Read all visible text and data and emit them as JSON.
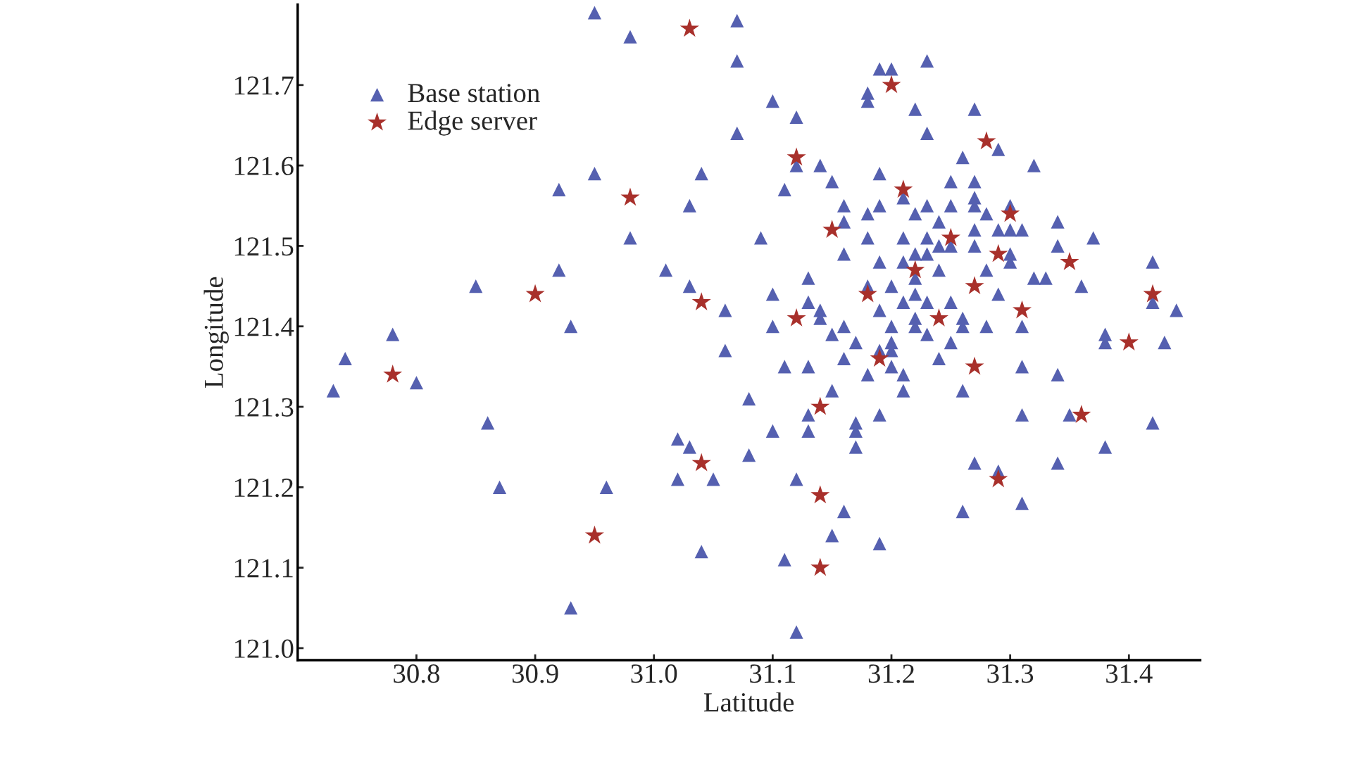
{
  "chart_data": {
    "type": "scatter",
    "xlabel": "Latitude",
    "ylabel": "Longitude",
    "xlim": [
      30.7,
      31.46
    ],
    "ylim": [
      120.985,
      121.8
    ],
    "xticks": [
      30.8,
      30.9,
      {
        "value": 31.0,
        "label": "31.0"
      },
      31.1,
      31.2,
      31.3,
      31.4
    ],
    "yticks": [
      {
        "value": 121.0,
        "label": "121.0"
      },
      121.1,
      121.2,
      121.3,
      121.4,
      121.5,
      121.6,
      121.7
    ],
    "legend": "top left",
    "series": [
      {
        "name": "Base station",
        "color": "#5560b0",
        "marker": "triangle",
        "x": [
          30.73,
          30.74,
          30.78,
          30.8,
          30.85,
          30.86,
          30.87,
          30.92,
          30.92,
          30.93,
          30.95,
          30.95,
          30.96,
          30.93,
          30.98,
          30.98,
          31.01,
          31.02,
          31.03,
          31.02,
          31.03,
          31.03,
          31.04,
          31.04,
          31.05,
          31.06,
          31.06,
          31.07,
          31.07,
          31.07,
          31.08,
          31.08,
          31.09,
          31.1,
          31.1,
          31.1,
          31.1,
          31.11,
          31.11,
          31.12,
          31.11,
          31.12,
          31.12,
          31.12,
          31.13,
          31.13,
          31.13,
          31.13,
          31.13,
          31.14,
          31.14,
          31.14,
          31.15,
          31.15,
          31.15,
          31.15,
          31.16,
          31.16,
          31.16,
          31.16,
          31.16,
          31.16,
          31.17,
          31.17,
          31.17,
          31.17,
          31.18,
          31.18,
          31.18,
          31.18,
          31.18,
          31.18,
          31.19,
          31.19,
          31.19,
          31.19,
          31.19,
          31.19,
          31.19,
          31.19,
          31.2,
          31.2,
          31.2,
          31.2,
          31.2,
          31.2,
          31.21,
          31.21,
          31.21,
          31.21,
          31.21,
          31.21,
          31.22,
          31.22,
          31.22,
          31.22,
          31.22,
          31.22,
          31.22,
          31.23,
          31.23,
          31.23,
          31.23,
          31.23,
          31.23,
          31.23,
          31.24,
          31.24,
          31.24,
          31.24,
          31.25,
          31.25,
          31.25,
          31.25,
          31.25,
          31.26,
          31.26,
          31.26,
          31.26,
          31.26,
          31.27,
          31.27,
          31.27,
          31.27,
          31.27,
          31.27,
          31.27,
          31.28,
          31.28,
          31.28,
          31.29,
          31.29,
          31.29,
          31.29,
          31.3,
          31.3,
          31.3,
          31.3,
          31.31,
          31.31,
          31.31,
          31.31,
          31.31,
          31.32,
          31.32,
          31.33,
          31.34,
          31.34,
          31.34,
          31.34,
          31.36,
          31.35,
          31.37,
          31.38,
          31.38,
          31.38,
          31.42,
          31.42,
          31.42,
          31.43,
          31.44
        ],
        "values": [
          121.32,
          121.36,
          121.39,
          121.33,
          121.45,
          121.28,
          121.2,
          121.47,
          121.57,
          121.4,
          121.59,
          121.79,
          121.2,
          121.05,
          121.76,
          121.51,
          121.47,
          121.26,
          121.25,
          121.21,
          121.45,
          121.55,
          121.59,
          121.12,
          121.21,
          121.42,
          121.37,
          121.73,
          121.78,
          121.64,
          121.31,
          121.24,
          121.51,
          121.68,
          121.4,
          121.44,
          121.27,
          121.35,
          121.11,
          121.66,
          121.57,
          121.6,
          121.21,
          121.02,
          121.43,
          121.35,
          121.27,
          121.29,
          121.46,
          121.41,
          121.6,
          121.42,
          121.32,
          121.39,
          121.58,
          121.14,
          121.53,
          121.55,
          121.49,
          121.36,
          121.17,
          121.4,
          121.27,
          121.25,
          121.38,
          121.28,
          121.51,
          121.69,
          121.45,
          121.54,
          121.68,
          121.34,
          121.72,
          121.59,
          121.29,
          121.48,
          121.37,
          121.42,
          121.13,
          121.55,
          121.45,
          121.37,
          121.4,
          121.72,
          121.35,
          121.38,
          121.48,
          121.43,
          121.32,
          121.56,
          121.34,
          121.51,
          121.67,
          121.41,
          121.44,
          121.46,
          121.4,
          121.49,
          121.54,
          121.73,
          121.43,
          121.64,
          121.51,
          121.55,
          121.39,
          121.49,
          121.53,
          121.47,
          121.36,
          121.5,
          121.43,
          121.55,
          121.58,
          121.38,
          121.5,
          121.41,
          121.17,
          121.32,
          121.4,
          121.61,
          121.23,
          121.5,
          121.56,
          121.58,
          121.52,
          121.55,
          121.67,
          121.47,
          121.54,
          121.4,
          121.62,
          121.22,
          121.44,
          121.52,
          121.55,
          121.49,
          121.48,
          121.52,
          121.18,
          121.35,
          121.29,
          121.4,
          121.52,
          121.6,
          121.46,
          121.46,
          121.23,
          121.53,
          121.34,
          121.5,
          121.45,
          121.29,
          121.51,
          121.39,
          121.38,
          121.25,
          121.48,
          121.28,
          121.43,
          121.38,
          121.42
        ]
      },
      {
        "name": "Edge server",
        "color": "#a8302b",
        "marker": "star",
        "x": [
          30.78,
          30.9,
          30.95,
          30.98,
          31.03,
          31.04,
          31.04,
          31.12,
          31.12,
          31.14,
          31.14,
          31.14,
          31.15,
          31.18,
          31.19,
          31.2,
          31.21,
          31.22,
          31.24,
          31.25,
          31.27,
          31.27,
          31.28,
          31.29,
          31.3,
          31.31,
          31.35,
          31.36,
          31.4,
          31.42,
          31.29
        ],
        "values": [
          121.34,
          121.44,
          121.14,
          121.56,
          121.77,
          121.43,
          121.23,
          121.61,
          121.41,
          121.3,
          121.19,
          121.1,
          121.52,
          121.44,
          121.36,
          121.7,
          121.57,
          121.47,
          121.41,
          121.51,
          121.45,
          121.35,
          121.63,
          121.49,
          121.54,
          121.42,
          121.48,
          121.29,
          121.38,
          121.44,
          121.21
        ]
      }
    ]
  }
}
